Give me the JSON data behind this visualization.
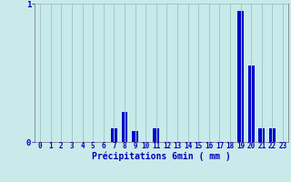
{
  "title": "",
  "xlabel": "Précipitations 6min ( mm )",
  "hours": [
    0,
    1,
    2,
    3,
    4,
    5,
    6,
    7,
    8,
    9,
    10,
    11,
    12,
    13,
    14,
    15,
    16,
    17,
    18,
    19,
    20,
    21,
    22,
    23
  ],
  "values": [
    0,
    0,
    0,
    0,
    0,
    0,
    0,
    0.1,
    0.22,
    0.08,
    0,
    0.1,
    0,
    0,
    0,
    0,
    0,
    0,
    0,
    0.95,
    0.55,
    0.1,
    0.1,
    0
  ],
  "bar_color": "#0000cc",
  "bg_color": "#c8eaea",
  "grid_color": "#a0c8c8",
  "axis_color": "#808080",
  "text_color": "#0000bb",
  "ylim": [
    0,
    1.0
  ],
  "yticks": [
    0,
    1
  ],
  "xlim": [
    -0.5,
    23.5
  ],
  "bar_width": 0.6
}
